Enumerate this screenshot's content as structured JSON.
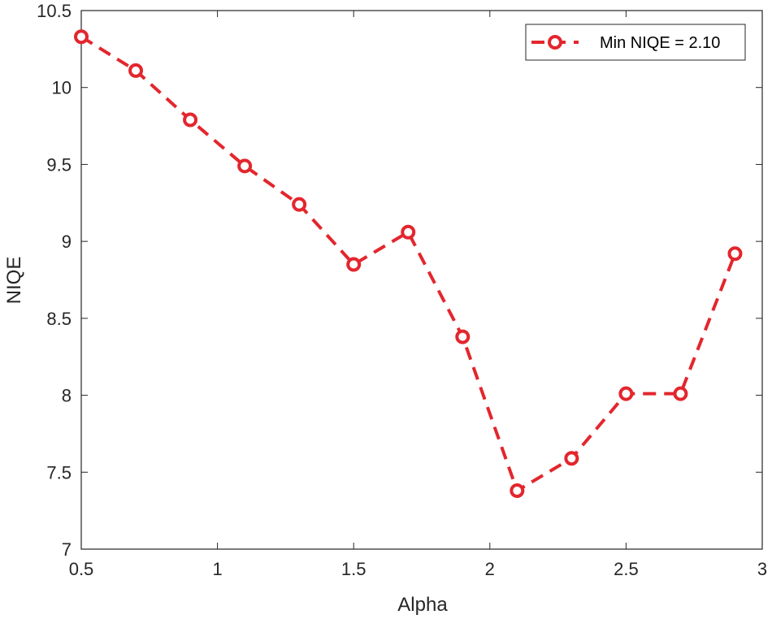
{
  "chart_data": {
    "type": "line",
    "title": "",
    "xlabel": "Alpha",
    "ylabel": "NIQE",
    "xlim": [
      0.5,
      3
    ],
    "ylim": [
      7,
      10.5
    ],
    "xticks": [
      0.5,
      1,
      1.5,
      2,
      2.5,
      3
    ],
    "xtick_labels": [
      "0.5",
      "1",
      "1.5",
      "2",
      "2.5",
      "3"
    ],
    "yticks": [
      7,
      7.5,
      8,
      8.5,
      9,
      9.5,
      10,
      10.5
    ],
    "ytick_labels": [
      "7",
      "7.5",
      "8",
      "8.5",
      "9",
      "9.5",
      "10",
      "10.5"
    ],
    "grid": false,
    "legend_position": "top-right",
    "series": [
      {
        "name": "Min NIQE = 2.10",
        "color": "#e3262d",
        "line_style": "dashed",
        "marker": "circle",
        "x": [
          0.5,
          0.7,
          0.9,
          1.1,
          1.3,
          1.5,
          1.7,
          1.9,
          2.1,
          2.3,
          2.5,
          2.7,
          2.9
        ],
        "y": [
          10.33,
          10.11,
          9.79,
          9.49,
          9.24,
          8.85,
          9.06,
          8.38,
          7.38,
          7.59,
          8.01,
          8.01,
          8.92
        ]
      }
    ]
  }
}
